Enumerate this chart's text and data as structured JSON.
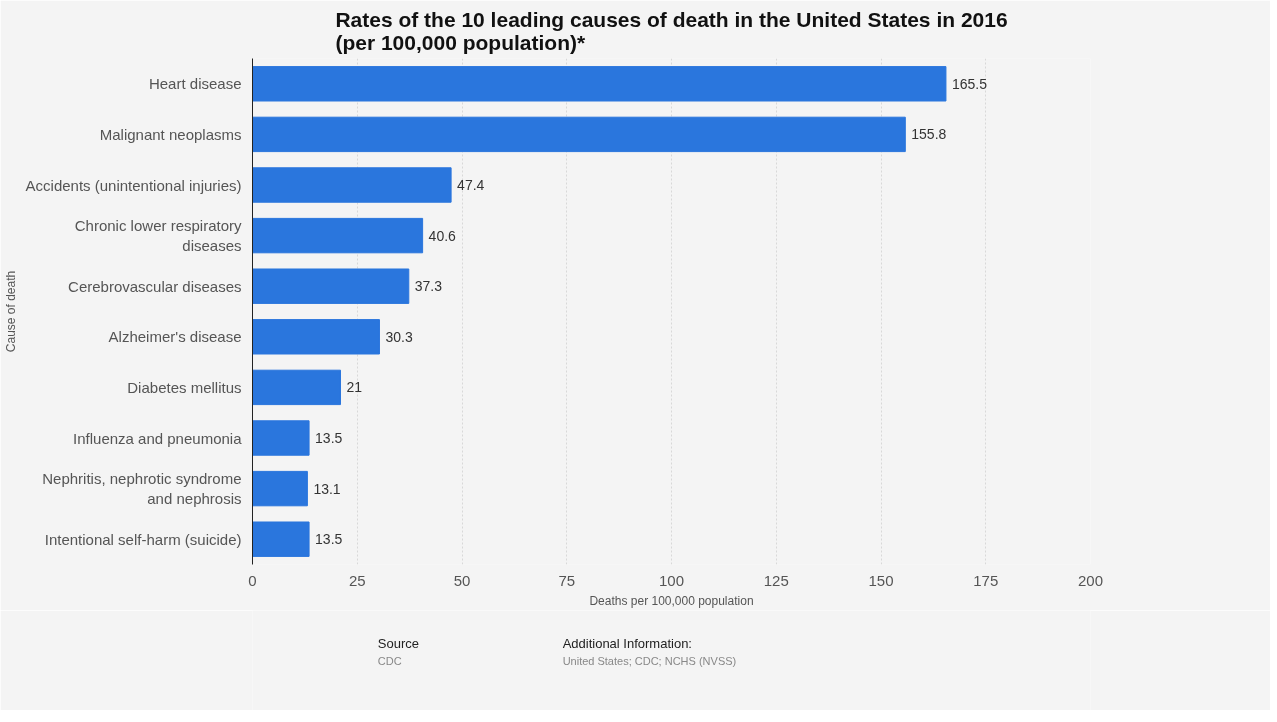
{
  "chart_data": {
    "type": "bar",
    "orientation": "horizontal",
    "title": "Rates of the 10 leading causes of death in the United States in 2016\n(per 100,000 population)*",
    "categories": [
      "Heart disease",
      "Malignant neoplasms",
      "Accidents (unintentional injuries)",
      "Chronic lower respiratory\ndiseases",
      "Cerebrovascular diseases",
      "Alzheimer's disease",
      "Diabetes mellitus",
      "Influenza and pneumonia",
      "Nephritis, nephrotic syndrome\nand nephrosis",
      "Intentional self-harm (suicide)"
    ],
    "values": [
      165.5,
      155.8,
      47.4,
      40.6,
      37.3,
      30.3,
      21,
      13.5,
      13.1,
      13.5
    ],
    "color": "#2a76dd",
    "xlim": [
      0,
      200
    ],
    "xticks": [
      0,
      25,
      50,
      75,
      100,
      125,
      150,
      175,
      200
    ],
    "xlabel": "Deaths per 100,000 population",
    "ylabel": "Cause of death",
    "grid": "x",
    "data_labels": true,
    "annotations": [
      "Source",
      "CDC",
      "Additional Information:",
      "United States; CDC; NCHS (NVSS)"
    ]
  }
}
